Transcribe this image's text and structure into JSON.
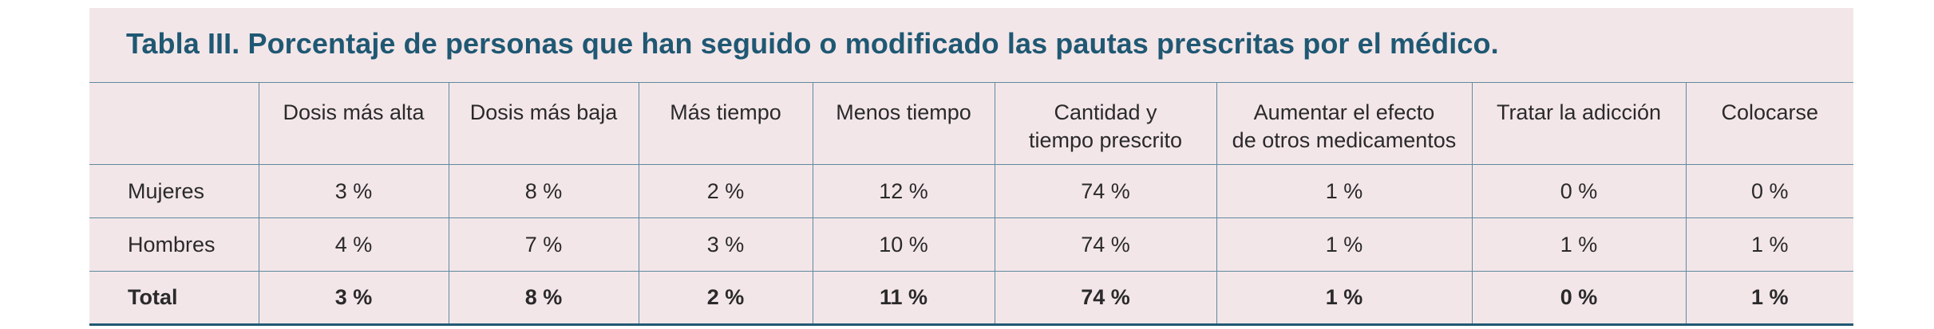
{
  "table": {
    "title": "Tabla III. Porcentaje de personas que han seguido o modificado las pautas prescritas por el médico.",
    "headers": [
      "",
      "Dosis más alta",
      "Dosis más baja",
      "Más tiempo",
      "Menos tiempo",
      "Cantidad y\ntiempo prescrito",
      "Aumentar el efecto\nde otros medicamentos",
      "Tratar la adicción",
      "Colocarse"
    ],
    "rows": [
      [
        "Mujeres",
        "3 %",
        "8 %",
        "2 %",
        "12 %",
        "74 %",
        "1 %",
        "0 %",
        "0 %"
      ],
      [
        "Hombres",
        "4 %",
        "7 %",
        "3 %",
        "10 %",
        "74 %",
        "1 %",
        "1 %",
        "1 %"
      ],
      [
        "Total",
        "3 %",
        "8 %",
        "2 %",
        "11 %",
        "74 %",
        "1 %",
        "0 %",
        "1 %"
      ]
    ]
  },
  "colors": {
    "panel_background": "#f3e6e8",
    "title": "#1f5873",
    "rule": "#5f8aa0",
    "text": "#2a2a2a"
  }
}
